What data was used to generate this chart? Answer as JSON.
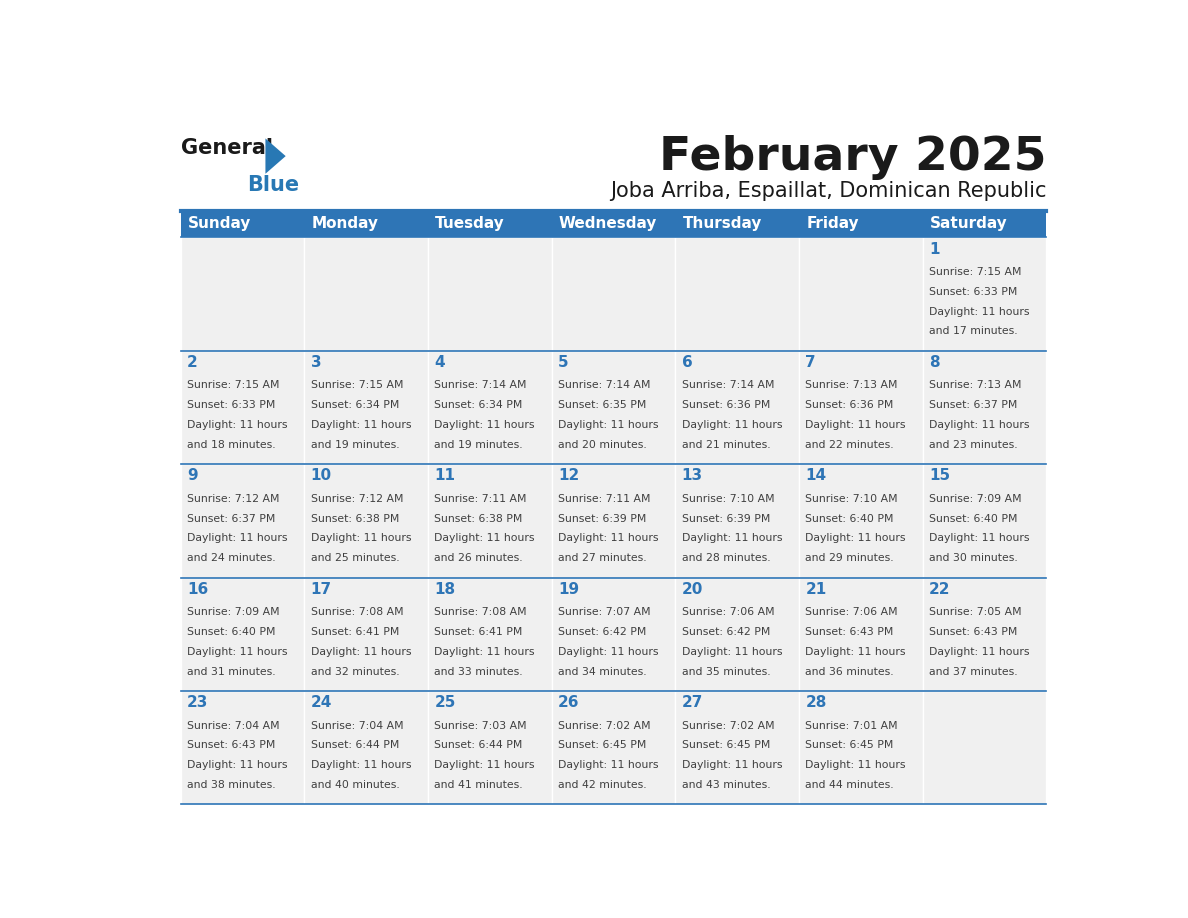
{
  "title": "February 2025",
  "subtitle": "Joba Arriba, Espaillat, Dominican Republic",
  "days_of_week": [
    "Sunday",
    "Monday",
    "Tuesday",
    "Wednesday",
    "Thursday",
    "Friday",
    "Saturday"
  ],
  "header_bg": "#2E75B6",
  "header_text_color": "#FFFFFF",
  "cell_bg_light": "#F0F0F0",
  "day_number_color": "#2E75B6",
  "info_text_color": "#404040",
  "border_color": "#2E75B6",
  "title_color": "#1a1a1a",
  "logo_general_color": "#1a1a1a",
  "logo_blue_color": "#2878B4",
  "calendar_data": [
    [
      null,
      null,
      null,
      null,
      null,
      null,
      1
    ],
    [
      2,
      3,
      4,
      5,
      6,
      7,
      8
    ],
    [
      9,
      10,
      11,
      12,
      13,
      14,
      15
    ],
    [
      16,
      17,
      18,
      19,
      20,
      21,
      22
    ],
    [
      23,
      24,
      25,
      26,
      27,
      28,
      null
    ]
  ],
  "sunrise_data": {
    "1": "7:15 AM",
    "2": "7:15 AM",
    "3": "7:15 AM",
    "4": "7:14 AM",
    "5": "7:14 AM",
    "6": "7:14 AM",
    "7": "7:13 AM",
    "8": "7:13 AM",
    "9": "7:12 AM",
    "10": "7:12 AM",
    "11": "7:11 AM",
    "12": "7:11 AM",
    "13": "7:10 AM",
    "14": "7:10 AM",
    "15": "7:09 AM",
    "16": "7:09 AM",
    "17": "7:08 AM",
    "18": "7:08 AM",
    "19": "7:07 AM",
    "20": "7:06 AM",
    "21": "7:06 AM",
    "22": "7:05 AM",
    "23": "7:04 AM",
    "24": "7:04 AM",
    "25": "7:03 AM",
    "26": "7:02 AM",
    "27": "7:02 AM",
    "28": "7:01 AM"
  },
  "sunset_data": {
    "1": "6:33 PM",
    "2": "6:33 PM",
    "3": "6:34 PM",
    "4": "6:34 PM",
    "5": "6:35 PM",
    "6": "6:36 PM",
    "7": "6:36 PM",
    "8": "6:37 PM",
    "9": "6:37 PM",
    "10": "6:38 PM",
    "11": "6:38 PM",
    "12": "6:39 PM",
    "13": "6:39 PM",
    "14": "6:40 PM",
    "15": "6:40 PM",
    "16": "6:40 PM",
    "17": "6:41 PM",
    "18": "6:41 PM",
    "19": "6:42 PM",
    "20": "6:42 PM",
    "21": "6:43 PM",
    "22": "6:43 PM",
    "23": "6:43 PM",
    "24": "6:44 PM",
    "25": "6:44 PM",
    "26": "6:45 PM",
    "27": "6:45 PM",
    "28": "6:45 PM"
  },
  "daylight_minutes": {
    "1": "17",
    "2": "18",
    "3": "19",
    "4": "19",
    "5": "20",
    "6": "21",
    "7": "22",
    "8": "23",
    "9": "24",
    "10": "25",
    "11": "26",
    "12": "27",
    "13": "28",
    "14": "29",
    "15": "30",
    "16": "31",
    "17": "32",
    "18": "33",
    "19": "34",
    "20": "35",
    "21": "36",
    "22": "37",
    "23": "38",
    "24": "40",
    "25": "41",
    "26": "42",
    "27": "43",
    "28": "44"
  }
}
